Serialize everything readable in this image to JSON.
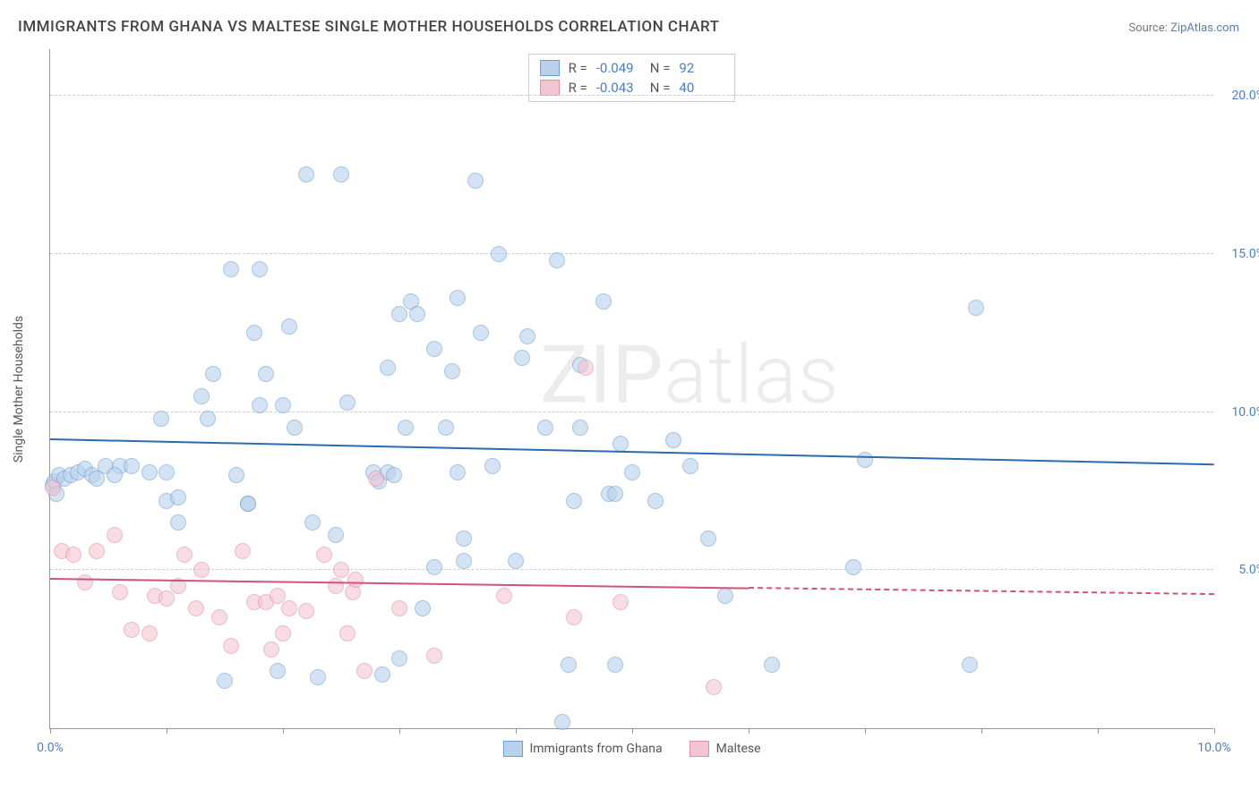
{
  "title": "IMMIGRANTS FROM GHANA VS MALTESE SINGLE MOTHER HOUSEHOLDS CORRELATION CHART",
  "source_prefix": "Source: ",
  "source_name": "ZipAtlas.com",
  "watermark_a": "ZIP",
  "watermark_b": "atlas",
  "chart": {
    "type": "scatter",
    "ylabel": "Single Mother Households",
    "xlim": [
      0,
      10
    ],
    "ylim": [
      0,
      21.5
    ],
    "xticks": [
      0,
      1,
      2,
      3,
      4,
      5,
      6,
      7,
      8,
      9,
      10
    ],
    "xtick_labels": {
      "0": "0.0%",
      "10": "10.0%"
    },
    "yticks": [
      5,
      10,
      15,
      20
    ],
    "ytick_labels": [
      "5.0%",
      "10.0%",
      "15.0%",
      "20.0%"
    ],
    "grid_color": "#cccccc",
    "background_color": "#ffffff",
    "axis_color": "#999999",
    "tick_label_color": "#4a7fc1",
    "marker_radius": 9,
    "marker_stroke_width": 1,
    "series": [
      {
        "name": "Immigrants from Ghana",
        "fill": "#b9d1ec",
        "stroke": "#6f9dd3",
        "fill_opacity": 0.6,
        "trend_color": "#2b6cb0",
        "r_value": "-0.049",
        "n_value": "92",
        "trend": {
          "x1": 0,
          "y1": 9.1,
          "x2": 10,
          "y2": 8.3,
          "dash_after_x": null
        },
        "points": [
          [
            0.02,
            7.7
          ],
          [
            0.04,
            7.8
          ],
          [
            0.08,
            8.0
          ],
          [
            0.12,
            7.9
          ],
          [
            0.18,
            8.0
          ],
          [
            0.24,
            8.1
          ],
          [
            0.3,
            8.2
          ],
          [
            0.36,
            8.0
          ],
          [
            0.48,
            8.3
          ],
          [
            0.6,
            8.3
          ],
          [
            0.05,
            7.4
          ],
          [
            0.7,
            8.3
          ],
          [
            0.85,
            8.1
          ],
          [
            0.95,
            9.8
          ],
          [
            1.0,
            8.1
          ],
          [
            1.0,
            7.2
          ],
          [
            1.1,
            6.5
          ],
          [
            1.3,
            10.5
          ],
          [
            1.35,
            9.8
          ],
          [
            1.4,
            11.2
          ],
          [
            1.5,
            1.5
          ],
          [
            1.55,
            14.5
          ],
          [
            1.7,
            7.1
          ],
          [
            1.7,
            7.1
          ],
          [
            1.75,
            12.5
          ],
          [
            1.8,
            14.5
          ],
          [
            1.85,
            11.2
          ],
          [
            1.95,
            1.8
          ],
          [
            2.0,
            10.2
          ],
          [
            2.05,
            12.7
          ],
          [
            2.1,
            9.5
          ],
          [
            2.2,
            17.5
          ],
          [
            2.45,
            6.1
          ],
          [
            2.5,
            17.5
          ],
          [
            2.55,
            10.3
          ],
          [
            1.8,
            10.2
          ],
          [
            2.78,
            8.1
          ],
          [
            2.82,
            7.8
          ],
          [
            2.85,
            1.7
          ],
          [
            2.9,
            8.1
          ],
          [
            2.95,
            8.0
          ],
          [
            2.9,
            11.4
          ],
          [
            3.05,
            9.5
          ],
          [
            3.1,
            13.5
          ],
          [
            3.15,
            13.1
          ],
          [
            3.2,
            3.8
          ],
          [
            3.3,
            12.0
          ],
          [
            3.4,
            9.5
          ],
          [
            3.45,
            11.3
          ],
          [
            3.5,
            13.6
          ],
          [
            3.55,
            5.3
          ],
          [
            3.5,
            8.1
          ],
          [
            3.65,
            17.3
          ],
          [
            3.7,
            12.5
          ],
          [
            3.8,
            8.3
          ],
          [
            3.85,
            15.0
          ],
          [
            4.0,
            5.3
          ],
          [
            4.05,
            11.7
          ],
          [
            4.25,
            9.5
          ],
          [
            4.35,
            14.8
          ],
          [
            4.4,
            0.2
          ],
          [
            4.45,
            2.0
          ],
          [
            4.5,
            7.2
          ],
          [
            4.55,
            11.5
          ],
          [
            4.75,
            13.5
          ],
          [
            4.8,
            7.4
          ],
          [
            4.85,
            7.4
          ],
          [
            4.85,
            2.0
          ],
          [
            4.9,
            9.0
          ],
          [
            5.0,
            8.1
          ],
          [
            5.2,
            7.2
          ],
          [
            5.35,
            9.1
          ],
          [
            5.5,
            8.3
          ],
          [
            5.65,
            6.0
          ],
          [
            5.8,
            4.2
          ],
          [
            6.2,
            2.0
          ],
          [
            6.9,
            5.1
          ],
          [
            7.0,
            8.5
          ],
          [
            7.9,
            2.0
          ],
          [
            7.95,
            13.3
          ],
          [
            2.25,
            6.5
          ],
          [
            2.3,
            1.6
          ],
          [
            4.1,
            12.4
          ],
          [
            3.0,
            2.2
          ],
          [
            3.55,
            6.0
          ],
          [
            3.3,
            5.1
          ],
          [
            4.55,
            9.5
          ],
          [
            1.1,
            7.3
          ],
          [
            0.55,
            8.0
          ],
          [
            0.4,
            7.9
          ],
          [
            1.6,
            8.0
          ],
          [
            3.0,
            13.1
          ]
        ]
      },
      {
        "name": "Maltese",
        "fill": "#f3c5d2",
        "stroke": "#e18fa8",
        "fill_opacity": 0.6,
        "trend_color": "#d1527b",
        "r_value": "-0.043",
        "n_value": "40",
        "trend": {
          "x1": 0,
          "y1": 4.7,
          "x2": 10,
          "y2": 4.2,
          "dash_after_x": 6.0
        },
        "points": [
          [
            0.02,
            7.6
          ],
          [
            0.1,
            5.6
          ],
          [
            0.2,
            5.5
          ],
          [
            0.3,
            4.6
          ],
          [
            0.4,
            5.6
          ],
          [
            0.55,
            6.1
          ],
          [
            0.6,
            4.3
          ],
          [
            0.7,
            3.1
          ],
          [
            0.85,
            3.0
          ],
          [
            0.9,
            4.2
          ],
          [
            1.0,
            4.1
          ],
          [
            1.1,
            4.5
          ],
          [
            1.15,
            5.5
          ],
          [
            1.25,
            3.8
          ],
          [
            1.3,
            5.0
          ],
          [
            1.45,
            3.5
          ],
          [
            1.55,
            2.6
          ],
          [
            1.65,
            5.6
          ],
          [
            1.75,
            4.0
          ],
          [
            1.85,
            4.0
          ],
          [
            1.9,
            2.5
          ],
          [
            2.0,
            3.0
          ],
          [
            2.05,
            3.8
          ],
          [
            2.2,
            3.7
          ],
          [
            2.35,
            5.5
          ],
          [
            2.45,
            4.5
          ],
          [
            2.5,
            5.0
          ],
          [
            2.55,
            3.0
          ],
          [
            2.6,
            4.3
          ],
          [
            2.62,
            4.7
          ],
          [
            2.7,
            1.8
          ],
          [
            2.8,
            7.9
          ],
          [
            3.0,
            3.8
          ],
          [
            3.3,
            2.3
          ],
          [
            3.9,
            4.2
          ],
          [
            4.5,
            3.5
          ],
          [
            4.6,
            11.4
          ],
          [
            4.9,
            4.0
          ],
          [
            5.7,
            1.3
          ],
          [
            1.95,
            4.2
          ]
        ]
      }
    ],
    "stats_labels": {
      "r": "R  =",
      "n": "N  ="
    },
    "bottom_legend_labels": [
      "Immigrants from Ghana",
      "Maltese"
    ]
  }
}
